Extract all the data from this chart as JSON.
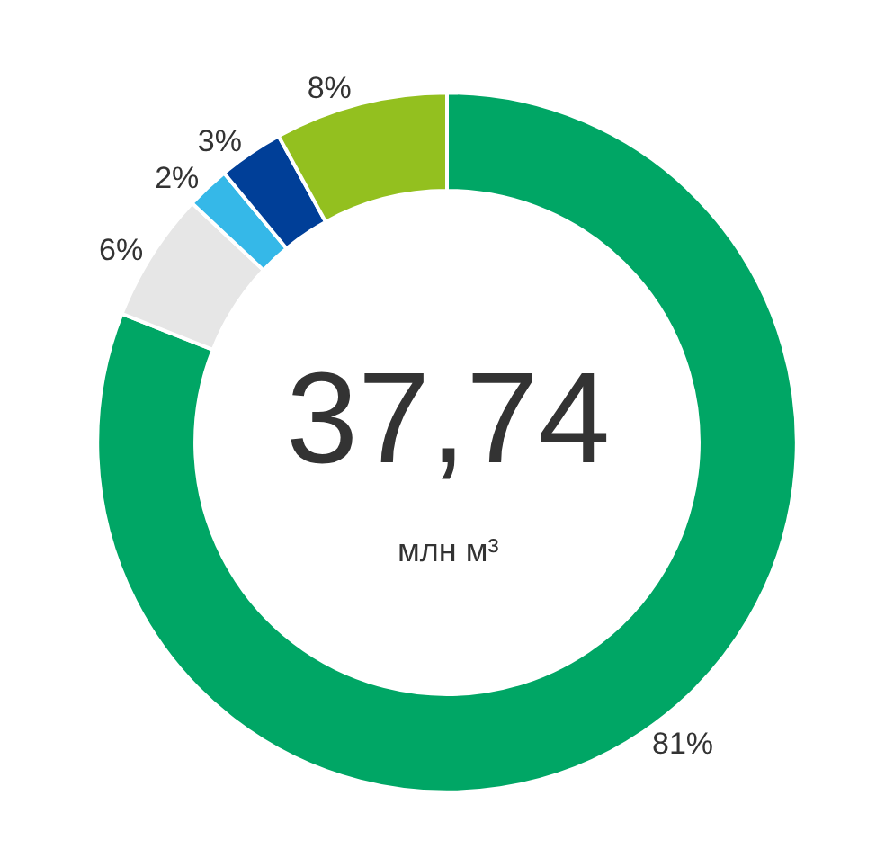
{
  "chart_data": {
    "type": "donut",
    "categories": [
      null,
      null,
      null,
      null,
      null
    ],
    "values": [
      81,
      6,
      2,
      3,
      8
    ],
    "colors": [
      "#00a665",
      "#e6e6e6",
      "#35b8e8",
      "#003f98",
      "#93c01f"
    ],
    "value_labels": [
      "81%",
      "6%",
      "2%",
      "3%",
      "8%"
    ],
    "annotations": [
      "37,74",
      "млн м³"
    ],
    "legend": false
  }
}
